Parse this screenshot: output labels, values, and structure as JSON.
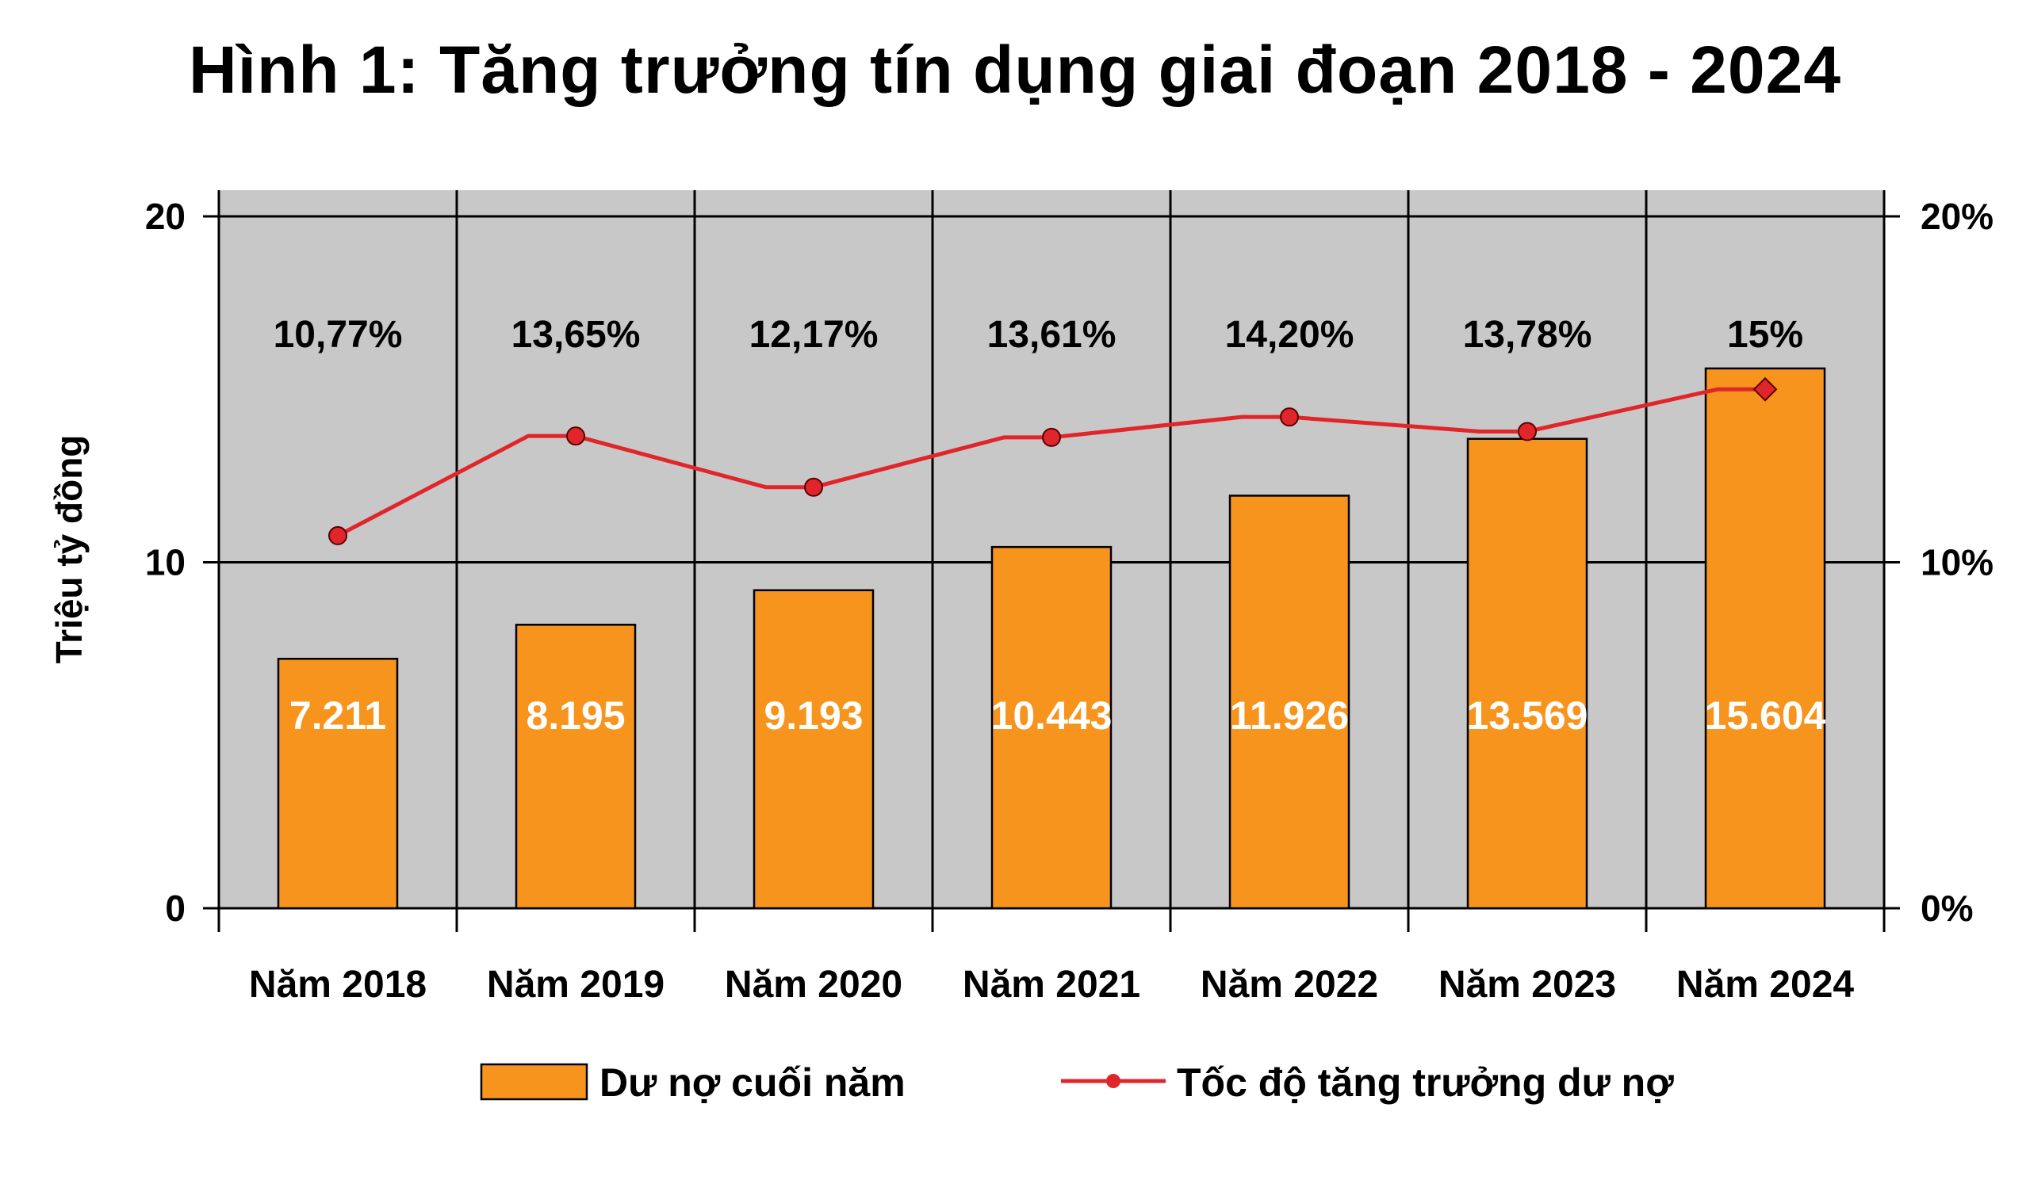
{
  "chart_data": {
    "type": "bar",
    "title": "Hình 1: Tăng trưởng tín dụng giai đoạn 2018 - 2024",
    "ylabel": "Triệu tỷ đồng",
    "ylim": [
      0,
      20
    ],
    "y2lim": [
      0,
      20
    ],
    "y_ticks": [
      "0",
      "10",
      "20"
    ],
    "y2_ticks": [
      "0%",
      "10%",
      "20%"
    ],
    "grid": true,
    "categories": [
      "Năm 2018",
      "Năm 2019",
      "Năm 2020",
      "Năm 2021",
      "Năm 2022",
      "Năm 2023",
      "Năm 2024"
    ],
    "series": [
      {
        "name": "Dư nợ cuối năm",
        "type": "bar",
        "values": [
          7.211,
          8.195,
          9.193,
          10.443,
          11.926,
          13.569,
          15.604
        ],
        "labels": [
          "7.211",
          "8.195",
          "9.193",
          "10.443",
          "11.926",
          "13.569",
          "15.604"
        ],
        "color": "#F7941D"
      },
      {
        "name": "Tốc độ tăng trưởng dư nợ",
        "type": "line",
        "axis": "right",
        "values": [
          10.77,
          13.65,
          12.17,
          13.61,
          14.2,
          13.78,
          15.0
        ],
        "labels": [
          "10,77%",
          "13,65%",
          "12,17%",
          "13,61%",
          "14,20%",
          "13,78%",
          "15%"
        ],
        "color": "#E0262B"
      }
    ],
    "legend": "bottom",
    "plot_background": "#C8C8C8"
  }
}
